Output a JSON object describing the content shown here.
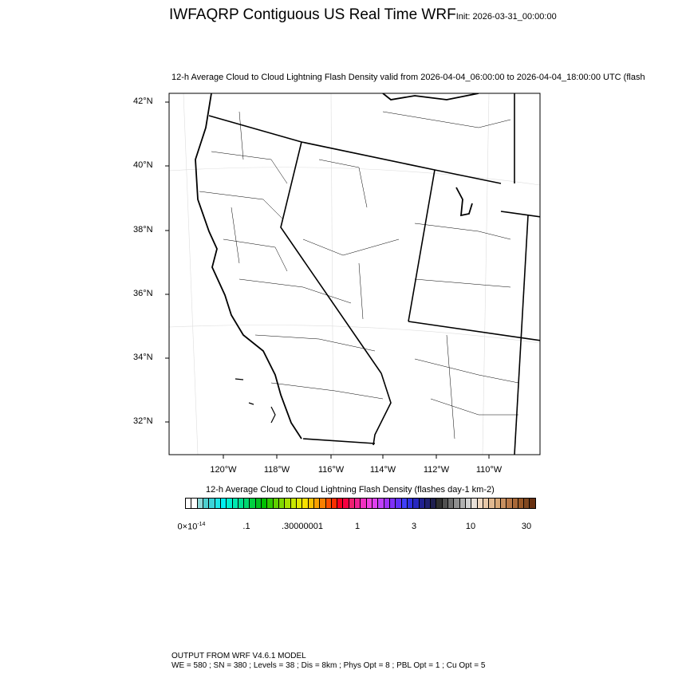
{
  "header": {
    "title": "IWFAQRP Contiguous US Real Time WRF",
    "init": "Init: 2026-03-31_00:00:00",
    "subtitle": "12-h Average Cloud to Cloud Lightning Flash Density valid from 2026-04-04_06:00:00 to 2026-04-04_18:00:00 UTC   (flash"
  },
  "map": {
    "lat_labels": [
      "42°N",
      "40°N",
      "38°N",
      "36°N",
      "34°N",
      "32°N"
    ],
    "lon_labels": [
      "120°W",
      "118°W",
      "116°W",
      "114°W",
      "112°W",
      "110°W"
    ]
  },
  "colorbar": {
    "title": "12-h Average Cloud to Cloud Lightning Flash Density  (flashes day-1 km-2)",
    "labels": [
      "0×10-14",
      ".1",
      ".30000001",
      "1",
      "3",
      "10",
      "30"
    ],
    "label_zero_base": "0×10",
    "label_zero_exp": "-14",
    "colors": [
      "#ffffff",
      "#ffffff",
      "#8fd8d8",
      "#4ecfcf",
      "#3cd4d8",
      "#1ee6e6",
      "#00f0f0",
      "#00f0d0",
      "#00e8b0",
      "#00e090",
      "#00d870",
      "#00d040",
      "#00c020",
      "#00c000",
      "#30c800",
      "#60d000",
      "#80d800",
      "#a8e000",
      "#c8e800",
      "#e0e800",
      "#f8e000",
      "#f8c000",
      "#f8a000",
      "#f88000",
      "#f85000",
      "#f83000",
      "#f80020",
      "#f80040",
      "#f02070",
      "#f02090",
      "#f030c0",
      "#f040e0",
      "#e040f0",
      "#c040f8",
      "#a030f8",
      "#8030f8",
      "#6030f8",
      "#4040f8",
      "#3030e0",
      "#2828c0",
      "#202090",
      "#202070",
      "#202050",
      "#303030",
      "#505050",
      "#707070",
      "#909090",
      "#b0b0b0",
      "#d0d0d0",
      "#e8e0d8",
      "#f0d8c0",
      "#e8c8a8",
      "#e0b890",
      "#d8a878",
      "#c89060",
      "#b87848",
      "#a86838",
      "#985828",
      "#804820",
      "#683010"
    ]
  },
  "footer": {
    "line1": "OUTPUT FROM WRF V4.6.1 MODEL",
    "line2": "WE = 580 ; SN = 380 ; Levels = 38 ; Dis = 8km ; Phys Opt = 8 ; PBL Opt = 1 ; Cu Opt = 5"
  }
}
